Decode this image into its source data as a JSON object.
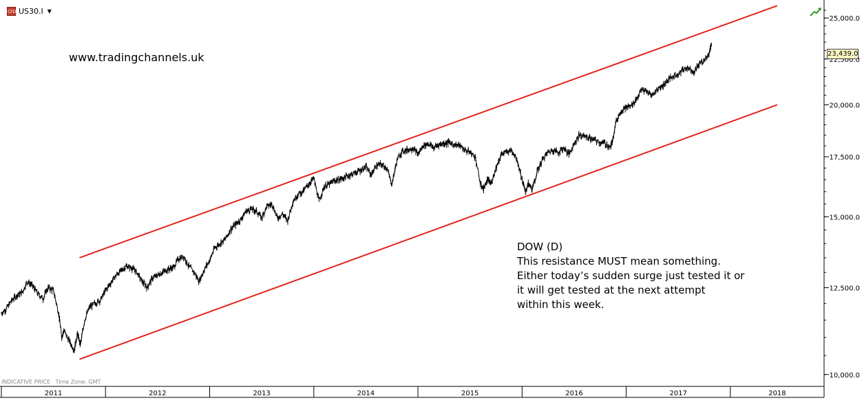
{
  "toolbar": {
    "icon_label": "CFD",
    "symbol": "US30.I",
    "dropdown_glyph": "▼"
  },
  "watermark": "www.tradingchannels.uk",
  "footer": {
    "indicative": "INDICATIVE PRICE",
    "timezone": "Time Zone: GMT"
  },
  "annotation": {
    "lines": [
      "DOW (D)",
      "This resistance MUST mean something.",
      "Either today’s sudden surge just tested it or",
      "it will get tested at the next attempt",
      "within this week."
    ]
  },
  "colors": {
    "price_line": "#000000",
    "channel_line": "#e3231b",
    "price_tag_bg": "#fff7c4",
    "trend_icon": "#2e9a2e"
  },
  "chart_data": {
    "type": "line",
    "series": [
      {
        "points": [
          [
            2011.0,
            11700
          ],
          [
            2011.05,
            11850
          ],
          [
            2011.1,
            12100
          ],
          [
            2011.15,
            12250
          ],
          [
            2011.2,
            12350
          ],
          [
            2011.25,
            12700
          ],
          [
            2011.3,
            12550
          ],
          [
            2011.35,
            12300
          ],
          [
            2011.4,
            12150
          ],
          [
            2011.45,
            12500
          ],
          [
            2011.5,
            12400
          ],
          [
            2011.55,
            11700
          ],
          [
            2011.58,
            11000
          ],
          [
            2011.6,
            11200
          ],
          [
            2011.65,
            10900
          ],
          [
            2011.7,
            10650
          ],
          [
            2011.73,
            11100
          ],
          [
            2011.76,
            10800
          ],
          [
            2011.8,
            11500
          ],
          [
            2011.85,
            11900
          ],
          [
            2011.9,
            12000
          ],
          [
            2011.95,
            12100
          ],
          [
            2012.0,
            12400
          ],
          [
            2012.05,
            12650
          ],
          [
            2012.1,
            12900
          ],
          [
            2012.15,
            13050
          ],
          [
            2012.2,
            13200
          ],
          [
            2012.25,
            13150
          ],
          [
            2012.3,
            13000
          ],
          [
            2012.35,
            12700
          ],
          [
            2012.4,
            12500
          ],
          [
            2012.45,
            12800
          ],
          [
            2012.5,
            12900
          ],
          [
            2012.55,
            13000
          ],
          [
            2012.6,
            13100
          ],
          [
            2012.65,
            13150
          ],
          [
            2012.7,
            13450
          ],
          [
            2012.75,
            13550
          ],
          [
            2012.8,
            13200
          ],
          [
            2012.85,
            13000
          ],
          [
            2012.9,
            12700
          ],
          [
            2012.95,
            13100
          ],
          [
            2013.0,
            13400
          ],
          [
            2013.05,
            13850
          ],
          [
            2013.1,
            14000
          ],
          [
            2013.15,
            14150
          ],
          [
            2013.2,
            14500
          ],
          [
            2013.25,
            14700
          ],
          [
            2013.3,
            14900
          ],
          [
            2013.35,
            15200
          ],
          [
            2013.4,
            15300
          ],
          [
            2013.45,
            15200
          ],
          [
            2013.5,
            14950
          ],
          [
            2013.55,
            15400
          ],
          [
            2013.6,
            15500
          ],
          [
            2013.65,
            14950
          ],
          [
            2013.7,
            15100
          ],
          [
            2013.75,
            14850
          ],
          [
            2013.8,
            15600
          ],
          [
            2013.85,
            15900
          ],
          [
            2013.9,
            16000
          ],
          [
            2013.95,
            16300
          ],
          [
            2014.0,
            16550
          ],
          [
            2014.05,
            15600
          ],
          [
            2014.1,
            16200
          ],
          [
            2014.15,
            16300
          ],
          [
            2014.2,
            16450
          ],
          [
            2014.25,
            16500
          ],
          [
            2014.3,
            16600
          ],
          [
            2014.35,
            16700
          ],
          [
            2014.4,
            16800
          ],
          [
            2014.45,
            16900
          ],
          [
            2014.5,
            17050
          ],
          [
            2014.55,
            16700
          ],
          [
            2014.6,
            17100
          ],
          [
            2014.65,
            17150
          ],
          [
            2014.7,
            17000
          ],
          [
            2014.75,
            16300
          ],
          [
            2014.8,
            17350
          ],
          [
            2014.85,
            17750
          ],
          [
            2014.9,
            17800
          ],
          [
            2014.95,
            17900
          ],
          [
            2015.0,
            17600
          ],
          [
            2015.05,
            18000
          ],
          [
            2015.1,
            18100
          ],
          [
            2015.15,
            17900
          ],
          [
            2015.2,
            18050
          ],
          [
            2015.25,
            18100
          ],
          [
            2015.3,
            18150
          ],
          [
            2015.35,
            18050
          ],
          [
            2015.4,
            18000
          ],
          [
            2015.45,
            17800
          ],
          [
            2015.5,
            17700
          ],
          [
            2015.55,
            17500
          ],
          [
            2015.6,
            16300
          ],
          [
            2015.63,
            16100
          ],
          [
            2015.67,
            16500
          ],
          [
            2015.7,
            16300
          ],
          [
            2015.75,
            17000
          ],
          [
            2015.8,
            17600
          ],
          [
            2015.85,
            17700
          ],
          [
            2015.9,
            17800
          ],
          [
            2015.95,
            17400
          ],
          [
            2016.0,
            16500
          ],
          [
            2016.03,
            16000
          ],
          [
            2016.06,
            16300
          ],
          [
            2016.1,
            16100
          ],
          [
            2016.15,
            16900
          ],
          [
            2016.2,
            17400
          ],
          [
            2016.25,
            17700
          ],
          [
            2016.3,
            17800
          ],
          [
            2016.35,
            17700
          ],
          [
            2016.4,
            17900
          ],
          [
            2016.45,
            17600
          ],
          [
            2016.5,
            18100
          ],
          [
            2016.55,
            18500
          ],
          [
            2016.6,
            18450
          ],
          [
            2016.65,
            18350
          ],
          [
            2016.7,
            18250
          ],
          [
            2016.75,
            18150
          ],
          [
            2016.8,
            18100
          ],
          [
            2016.85,
            17900
          ],
          [
            2016.87,
            18300
          ],
          [
            2016.9,
            19100
          ],
          [
            2016.95,
            19700
          ],
          [
            2017.0,
            19850
          ],
          [
            2017.05,
            19950
          ],
          [
            2017.1,
            20300
          ],
          [
            2017.15,
            20800
          ],
          [
            2017.2,
            20650
          ],
          [
            2017.25,
            20500
          ],
          [
            2017.3,
            20800
          ],
          [
            2017.35,
            21000
          ],
          [
            2017.4,
            21300
          ],
          [
            2017.45,
            21500
          ],
          [
            2017.5,
            21650
          ],
          [
            2017.55,
            21900
          ],
          [
            2017.6,
            22000
          ],
          [
            2017.65,
            21750
          ],
          [
            2017.7,
            22200
          ],
          [
            2017.75,
            22400
          ],
          [
            2017.8,
            22900
          ],
          [
            2017.82,
            23440
          ]
        ]
      }
    ],
    "channel": {
      "upper": [
        [
          2011.75,
          13500
        ],
        [
          2018.45,
          25800
        ]
      ],
      "lower": [
        [
          2011.75,
          10400
        ],
        [
          2018.45,
          20000
        ]
      ]
    },
    "last_price_label": "23,439.0",
    "xlim": [
      2011.0,
      2018.9
    ],
    "ylim": [
      9700,
      26000
    ],
    "yscale": "log",
    "y_ticks": [
      {
        "value": 10000,
        "label": "10,000.0"
      },
      {
        "value": 12500,
        "label": "12,500.0"
      },
      {
        "value": 15000,
        "label": "15,000.0"
      },
      {
        "value": 17500,
        "label": "17,500.0"
      },
      {
        "value": 20000,
        "label": "20,000.0"
      },
      {
        "value": 22500,
        "label": "22,500.0"
      },
      {
        "value": 25000,
        "label": "25,000.0"
      }
    ],
    "x_labels": [
      {
        "label": "2011",
        "start": 2011.0,
        "end": 2012.0
      },
      {
        "label": "2012",
        "start": 2012.0,
        "end": 2013.0
      },
      {
        "label": "2013",
        "start": 2013.0,
        "end": 2014.0
      },
      {
        "label": "2014",
        "start": 2014.0,
        "end": 2015.0
      },
      {
        "label": "2015",
        "start": 2015.0,
        "end": 2016.0
      },
      {
        "label": "2016",
        "start": 2016.0,
        "end": 2017.0
      },
      {
        "label": "2017",
        "start": 2017.0,
        "end": 2018.0
      },
      {
        "label": "2018",
        "start": 2018.0,
        "end": 2018.9
      }
    ],
    "grid": false
  }
}
